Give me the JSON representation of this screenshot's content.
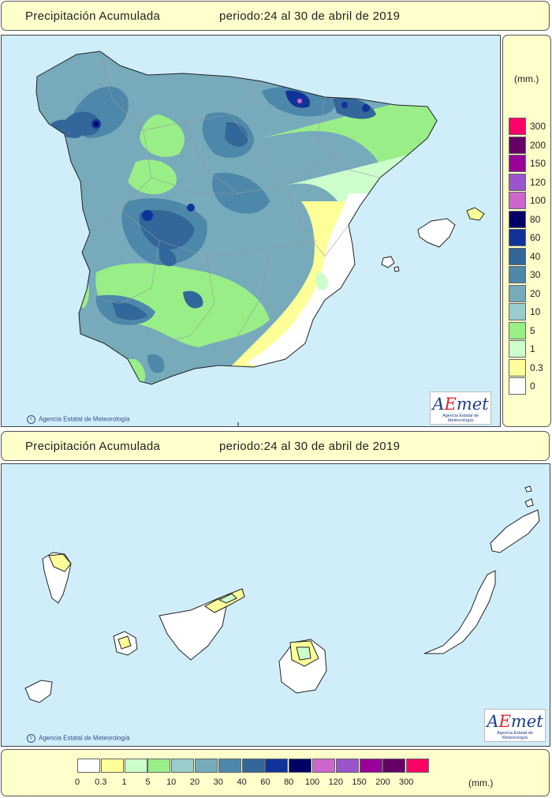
{
  "top_panel": {
    "title": "Precipitación Acumulada",
    "period": "periodo:24 al 30 de abril de 2019",
    "copyright": "Agencia Estatal de Meteorología"
  },
  "bottom_panel": {
    "title": "Precipitación Acumulada",
    "period": "periodo:24 al 30 de abril de 2019",
    "copyright": "Agencia Estatal de Meteorología"
  },
  "logo": {
    "mark_a": "A",
    "mark_e": "E",
    "mark_rest": "met",
    "subtitle": "Agencia Estatal de Meteorología"
  },
  "legend": {
    "unit": "(mm.)",
    "bands": [
      {
        "label": "0",
        "color": "#ffffff"
      },
      {
        "label": "0.3",
        "color": "#ffff99"
      },
      {
        "label": "1",
        "color": "#ccffcc"
      },
      {
        "label": "5",
        "color": "#99ee88"
      },
      {
        "label": "10",
        "color": "#99cccc"
      },
      {
        "label": "20",
        "color": "#77aabb"
      },
      {
        "label": "30",
        "color": "#4d88aa"
      },
      {
        "label": "40",
        "color": "#336699"
      },
      {
        "label": "60",
        "color": "#113399"
      },
      {
        "label": "80",
        "color": "#000066"
      },
      {
        "label": "100",
        "color": "#cc66cc"
      },
      {
        "label": "120",
        "color": "#9955cc"
      },
      {
        "label": "150",
        "color": "#990099"
      },
      {
        "label": "200",
        "color": "#660066"
      },
      {
        "label": "300",
        "color": "#ff0066"
      }
    ]
  },
  "colors": {
    "sea": "#cfeefa",
    "panel": "#ffffcc"
  }
}
